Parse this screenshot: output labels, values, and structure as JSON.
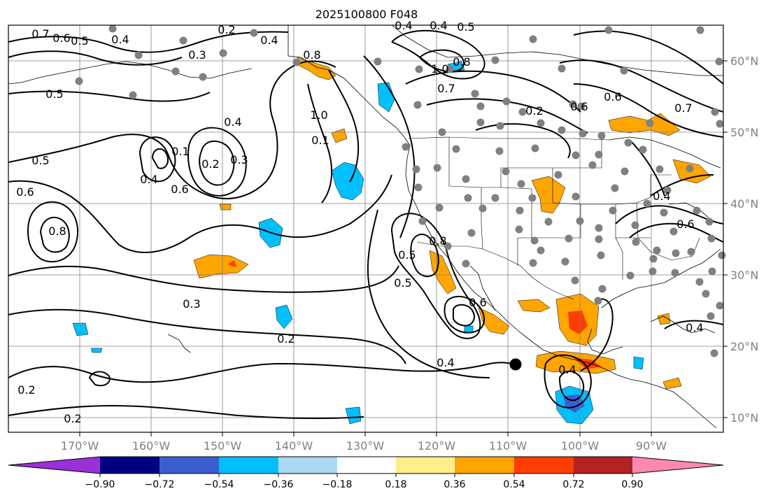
{
  "title": "2025100800 F048",
  "lon_labels": [
    "170°W",
    "160°W",
    "150°W",
    "140°W",
    "130°W",
    "120°W",
    "110°W",
    "100°W",
    "90°W"
  ],
  "lat_labels": [
    "60°N",
    "50°N",
    "40°N",
    "30°N",
    "20°N",
    "10°N"
  ],
  "colorbar": {
    "tick_labels": [
      "−0.90",
      "−0.72",
      "−0.54",
      "−0.36",
      "−0.18",
      "0.18",
      "0.36",
      "0.54",
      "0.72",
      "0.90"
    ],
    "colors": {
      "extend_low": "#9b30d9",
      "c1": "#000080",
      "c2": "#3a5fcd",
      "c3": "#00bfff",
      "c4": "#add8f5",
      "c5": "#ffffff",
      "c6": "#fdee8c",
      "c7": "#ffa500",
      "c8": "#ff3c00",
      "c9": "#b22222",
      "extend_high": "#ff88b0"
    }
  },
  "contour_labels": [
    "0.7",
    "0.6",
    "0.5",
    "0.4",
    "0.2",
    "0.4",
    "0.4",
    "0.4",
    "0.5",
    "0.8",
    "0.3",
    "1.0",
    "0.7",
    "0.8",
    "0.6",
    "0.5",
    "1.0",
    "0.4",
    "0.2",
    "0.6",
    "0.7",
    "0.1",
    "0.2",
    "0.3",
    "0.6",
    "0.4",
    "0.6",
    "0.1",
    "0.5",
    "0.8",
    "0.3",
    "0.5",
    "0.8",
    "0.6",
    "0.2",
    "0.4",
    "0.4",
    "0.4",
    "0.2",
    "0.6",
    "0.5",
    "0.4",
    "0.2"
  ],
  "colors": {
    "positive_anomaly": "#ffa500",
    "strong_positive": "#ff3c00",
    "negative_anomaly": "#00bfff",
    "strong_negative": "#3a5fcd",
    "station": "#808080",
    "axis_label": "#808080"
  }
}
